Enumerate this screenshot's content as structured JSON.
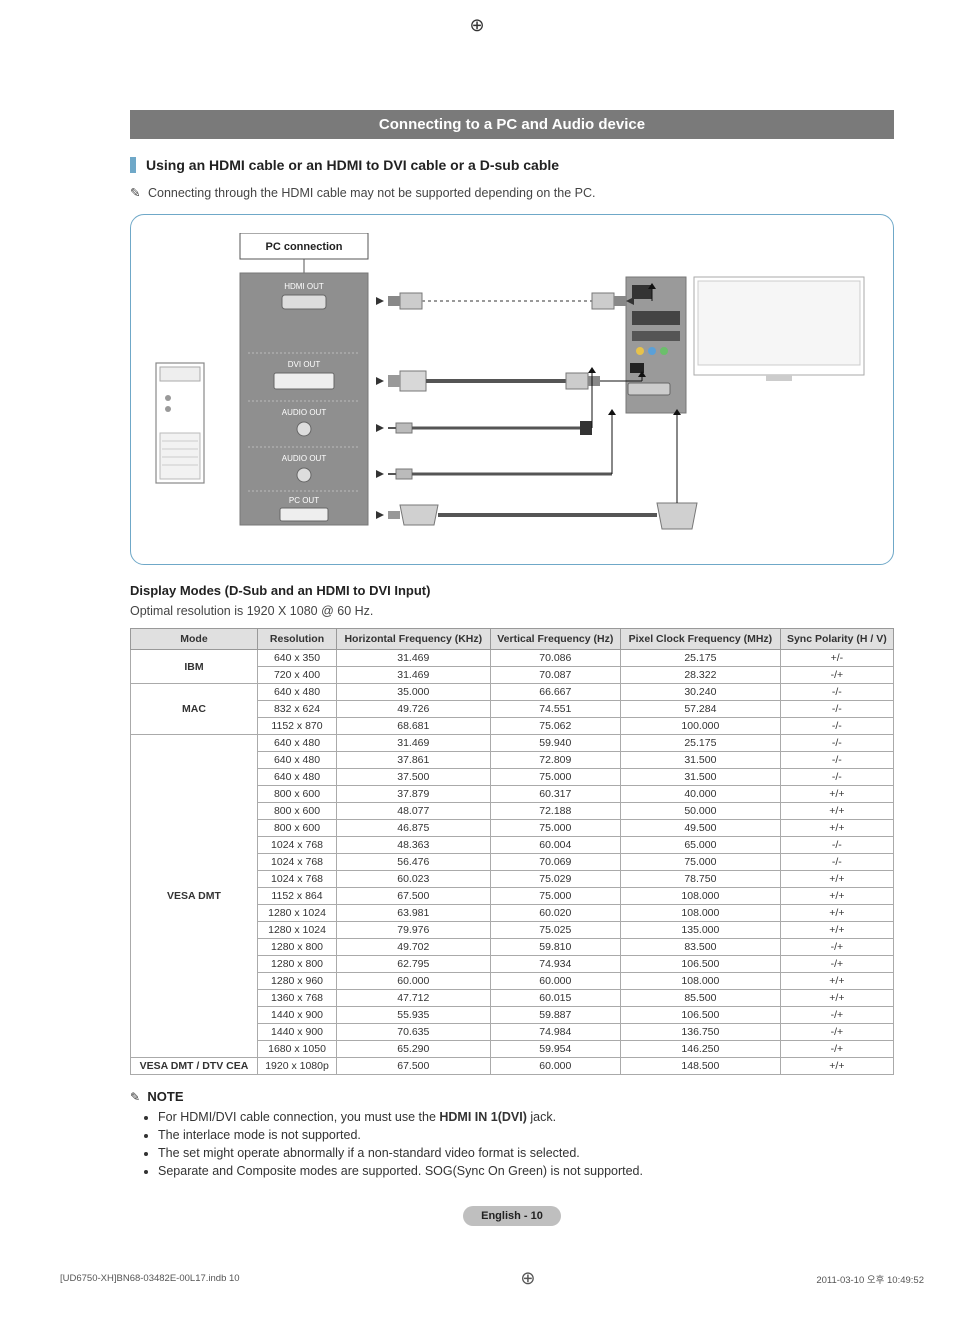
{
  "section_title": "Connecting to a PC and Audio device",
  "subheading": "Using an HDMI cable or an HDMI to DVI cable or a D-sub cable",
  "note_line": "Connecting through the HDMI cable may not be supported depending on the PC.",
  "diagram": {
    "pc_connection_label": "PC connection",
    "hdmi_out": "HDMI OUT",
    "dvi_out": "DVI OUT",
    "audio_out": "AUDIO OUT",
    "pc_out": "PC OUT"
  },
  "display_modes_heading": "Display Modes (D-Sub and an HDMI to DVI Input)",
  "optimal_text": "Optimal resolution is 1920 X 1080 @ 60 Hz.",
  "table": {
    "columns": [
      "Mode",
      "Resolution",
      "Horizontal Frequency (KHz)",
      "Vertical Frequency (Hz)",
      "Pixel Clock Frequency (MHz)",
      "Sync Polarity (H / V)"
    ],
    "groups": [
      {
        "mode": "IBM",
        "rows": [
          [
            "640 x 350",
            "31.469",
            "70.086",
            "25.175",
            "+/-"
          ],
          [
            "720 x 400",
            "31.469",
            "70.087",
            "28.322",
            "-/+"
          ]
        ]
      },
      {
        "mode": "MAC",
        "rows": [
          [
            "640 x 480",
            "35.000",
            "66.667",
            "30.240",
            "-/-"
          ],
          [
            "832 x 624",
            "49.726",
            "74.551",
            "57.284",
            "-/-"
          ],
          [
            "1152 x 870",
            "68.681",
            "75.062",
            "100.000",
            "-/-"
          ]
        ]
      },
      {
        "mode": "VESA DMT",
        "rows": [
          [
            "640 x 480",
            "31.469",
            "59.940",
            "25.175",
            "-/-"
          ],
          [
            "640 x 480",
            "37.861",
            "72.809",
            "31.500",
            "-/-"
          ],
          [
            "640 x 480",
            "37.500",
            "75.000",
            "31.500",
            "-/-"
          ],
          [
            "800 x 600",
            "37.879",
            "60.317",
            "40.000",
            "+/+"
          ],
          [
            "800 x 600",
            "48.077",
            "72.188",
            "50.000",
            "+/+"
          ],
          [
            "800 x 600",
            "46.875",
            "75.000",
            "49.500",
            "+/+"
          ],
          [
            "1024 x 768",
            "48.363",
            "60.004",
            "65.000",
            "-/-"
          ],
          [
            "1024 x 768",
            "56.476",
            "70.069",
            "75.000",
            "-/-"
          ],
          [
            "1024 x 768",
            "60.023",
            "75.029",
            "78.750",
            "+/+"
          ],
          [
            "1152 x 864",
            "67.500",
            "75.000",
            "108.000",
            "+/+"
          ],
          [
            "1280 x 1024",
            "63.981",
            "60.020",
            "108.000",
            "+/+"
          ],
          [
            "1280 x 1024",
            "79.976",
            "75.025",
            "135.000",
            "+/+"
          ],
          [
            "1280 x 800",
            "49.702",
            "59.810",
            "83.500",
            "-/+"
          ],
          [
            "1280 x 800",
            "62.795",
            "74.934",
            "106.500",
            "-/+"
          ],
          [
            "1280 x 960",
            "60.000",
            "60.000",
            "108.000",
            "+/+"
          ],
          [
            "1360 x 768",
            "47.712",
            "60.015",
            "85.500",
            "+/+"
          ],
          [
            "1440 x 900",
            "55.935",
            "59.887",
            "106.500",
            "-/+"
          ],
          [
            "1440 x 900",
            "70.635",
            "74.984",
            "136.750",
            "-/+"
          ],
          [
            "1680 x 1050",
            "65.290",
            "59.954",
            "146.250",
            "-/+"
          ]
        ]
      },
      {
        "mode": "VESA DMT / DTV CEA",
        "rows": [
          [
            "1920 x 1080p",
            "67.500",
            "60.000",
            "148.500",
            "+/+"
          ]
        ]
      }
    ]
  },
  "note_block": {
    "title": "NOTE",
    "items": [
      {
        "pre": "For HDMI/DVI cable connection, you must use the ",
        "jack": "HDMI IN 1(DVI)",
        "post": " jack."
      },
      {
        "pre": "The interlace mode is not supported.",
        "jack": "",
        "post": ""
      },
      {
        "pre": "The set might operate abnormally if a non-standard video format is selected.",
        "jack": "",
        "post": ""
      },
      {
        "pre": "Separate and Composite modes are supported. SOG(Sync On Green) is not supported.",
        "jack": "",
        "post": ""
      }
    ]
  },
  "page_number": "English - 10",
  "footer_left": "[UD6750-XH]BN68-03482E-00L17.indb   10",
  "footer_right": "2011-03-10   오후 10:49:52",
  "colors": {
    "banner_bg": "#7a7a7a",
    "accent": "#6fa8c8",
    "th_bg": "#e0e0e0"
  }
}
